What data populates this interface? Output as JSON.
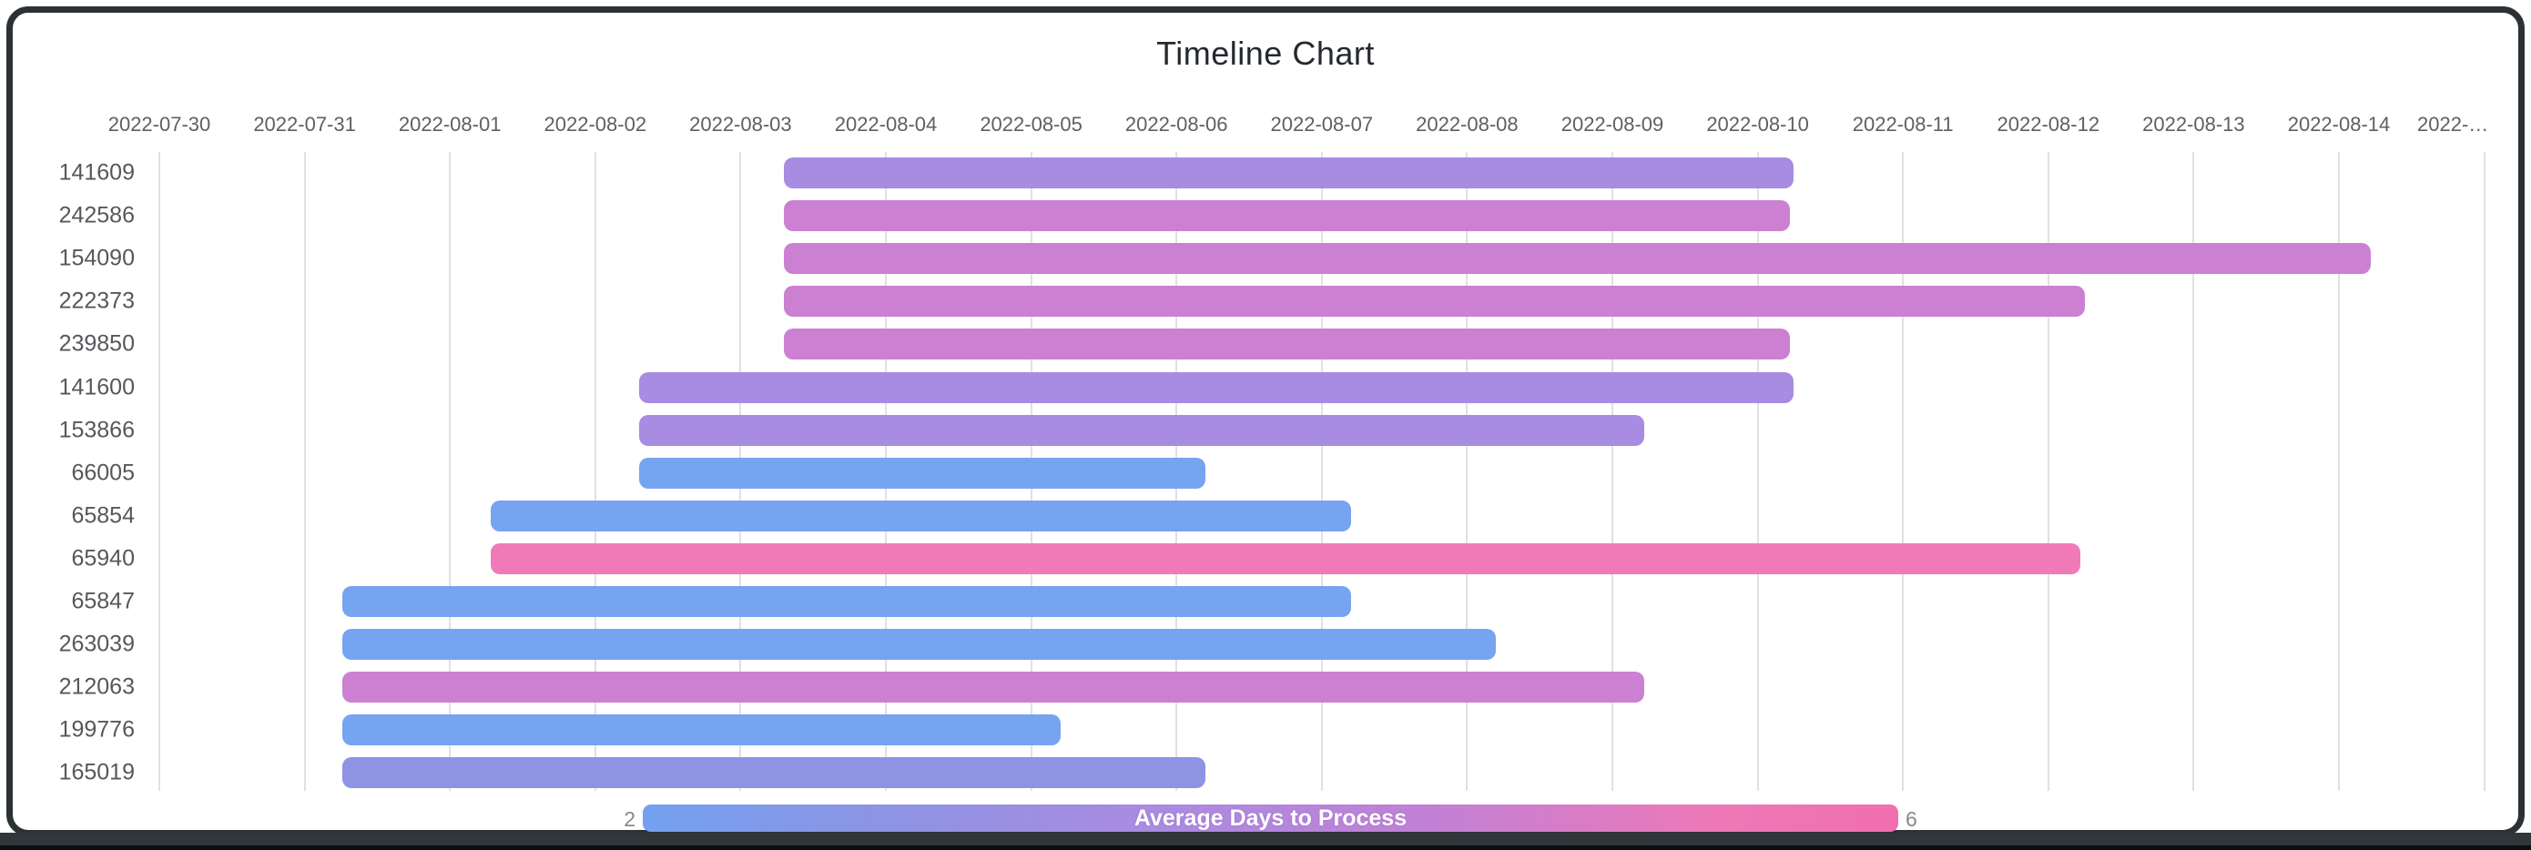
{
  "chart_data": {
    "type": "timeline",
    "title": "Timeline Chart",
    "x_axis": {
      "start_date": "2022-07-30",
      "tick_interval_days": 1,
      "tick_labels": [
        "2022-07-30",
        "2022-07-31",
        "2022-08-01",
        "2022-08-02",
        "2022-08-03",
        "2022-08-04",
        "2022-08-05",
        "2022-08-06",
        "2022-08-07",
        "2022-08-08",
        "2022-08-09",
        "2022-08-10",
        "2022-08-11",
        "2022-08-12",
        "2022-08-13",
        "2022-08-14",
        "2022-…"
      ],
      "grid": true
    },
    "rows": [
      {
        "label": "141609",
        "start_day": 4.3,
        "end_day": 11.25,
        "color": "#a78ce1"
      },
      {
        "label": "242586",
        "start_day": 4.3,
        "end_day": 11.22,
        "color": "#cb80d2"
      },
      {
        "label": "154090",
        "start_day": 4.3,
        "end_day": 15.22,
        "color": "#cb80d2"
      },
      {
        "label": "222373",
        "start_day": 4.3,
        "end_day": 13.25,
        "color": "#cb80d2"
      },
      {
        "label": "239850",
        "start_day": 4.3,
        "end_day": 11.22,
        "color": "#cb80d2"
      },
      {
        "label": "141600",
        "start_day": 3.3,
        "end_day": 11.25,
        "color": "#a78ce1"
      },
      {
        "label": "153866",
        "start_day": 3.3,
        "end_day": 10.22,
        "color": "#a78ce1"
      },
      {
        "label": "66005",
        "start_day": 3.3,
        "end_day": 7.2,
        "color": "#77a4f0"
      },
      {
        "label": "65854",
        "start_day": 2.28,
        "end_day": 8.2,
        "color": "#77a4f0"
      },
      {
        "label": "65940",
        "start_day": 2.28,
        "end_day": 13.22,
        "color": "#f07ab8"
      },
      {
        "label": "65847",
        "start_day": 1.26,
        "end_day": 8.2,
        "color": "#77a4f0"
      },
      {
        "label": "263039",
        "start_day": 1.26,
        "end_day": 9.2,
        "color": "#77a4f0"
      },
      {
        "label": "212063",
        "start_day": 1.26,
        "end_day": 10.22,
        "color": "#cb80d2"
      },
      {
        "label": "199776",
        "start_day": 1.26,
        "end_day": 6.2,
        "color": "#77a4f0"
      },
      {
        "label": "165019",
        "start_day": 1.26,
        "end_day": 7.2,
        "color": "#8e93e3"
      }
    ],
    "colorbar": {
      "title": "Average Days to Process",
      "min_label": "2",
      "max_label": "6",
      "gradient": [
        "#73a1f0",
        "#8e93e3",
        "#a78ce1",
        "#cb80d2",
        "#ee78b7",
        "#f06fb0"
      ],
      "position": "bottom-center"
    }
  }
}
